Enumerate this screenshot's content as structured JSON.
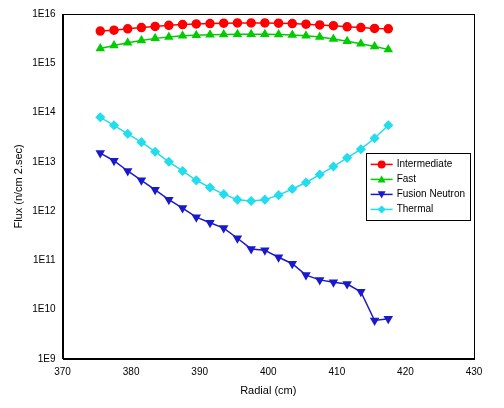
{
  "chart_data": {
    "type": "line",
    "x_label": "Radial (cm)",
    "y_label": "Flux (n/cm 2.sec)",
    "log": "y",
    "grid": false,
    "legend": "right",
    "x": [
      375.5,
      377.5,
      379.5,
      381.5,
      383.5,
      385.5,
      387.5,
      389.5,
      391.5,
      393.5,
      395.5,
      397.5,
      399.5,
      401.5,
      403.5,
      405.5,
      407.5,
      409.5,
      411.5,
      413.5,
      415.5,
      417.5
    ],
    "xlim": [
      370,
      430
    ],
    "xticks": [
      370,
      380,
      390,
      400,
      410,
      420,
      430
    ],
    "ylim": [
      1000000000.0,
      1e+16
    ],
    "yticks": [
      {
        "value": 1000000000.0,
        "label": "1E9"
      },
      {
        "value": 10000000000.0,
        "label": "1E10"
      },
      {
        "value": 100000000000.0,
        "label": "1E11"
      },
      {
        "value": 1000000000000.0,
        "label": "1E12"
      },
      {
        "value": 10000000000000.0,
        "label": "1E13"
      },
      {
        "value": 100000000000000.0,
        "label": "1E14"
      },
      {
        "value": 1000000000000000.0,
        "label": "1E15"
      },
      {
        "value": 1e+16,
        "label": "1E16"
      }
    ],
    "series": [
      {
        "name": "Intermediate",
        "color": "#ff0000",
        "marker": "circle",
        "values": [
          4500000000000000.0,
          4700000000000000.0,
          5000000000000000.0,
          5300000000000000.0,
          5600000000000000.0,
          5900000000000000.0,
          6100000000000000.0,
          6300000000000000.0,
          6400000000000000.0,
          6500000000000000.0,
          6600000000000000.0,
          6600000000000000.0,
          6600000000000000.0,
          6500000000000000.0,
          6400000000000000.0,
          6200000000000000.0,
          6000000000000000.0,
          5800000000000000.0,
          5500000000000000.0,
          5300000000000000.0,
          5100000000000000.0,
          5000000000000000.0
        ]
      },
      {
        "name": "Fast",
        "color": "#00cc00",
        "marker": "triangle-up",
        "values": [
          2000000000000000.0,
          2300000000000000.0,
          2600000000000000.0,
          2900000000000000.0,
          3200000000000000.0,
          3400000000000000.0,
          3600000000000000.0,
          3700000000000000.0,
          3800000000000000.0,
          3850000000000000.0,
          3900000000000000.0,
          3900000000000000.0,
          3900000000000000.0,
          3850000000000000.0,
          3750000000000000.0,
          3600000000000000.0,
          3400000000000000.0,
          3100000000000000.0,
          2800000000000000.0,
          2500000000000000.0,
          2200000000000000.0,
          1900000000000000.0
        ]
      },
      {
        "name": "Fusion Neutron",
        "color": "#1a1acc",
        "marker": "triangle-down",
        "values": [
          15000000000000.0,
          10500000000000.0,
          6500000000000.0,
          4200000000000.0,
          2700000000000.0,
          1700000000000.0,
          1150000000000.0,
          750000000000.0,
          580000000000.0,
          450000000000.0,
          280000000000.0,
          170000000000.0,
          160000000000.0,
          115000000000.0,
          85000000000.0,
          50000000000.0,
          40000000000.0,
          36000000000.0,
          33000000000.0,
          23000000000.0,
          6000000000.0,
          6500000000.0
        ]
      },
      {
        "name": "Thermal",
        "color": "#22ddee",
        "marker": "diamond",
        "values": [
          80000000000000.0,
          55000000000000.0,
          37000000000000.0,
          25000000000000.0,
          16000000000000.0,
          10000000000000.0,
          6500000000000.0,
          4200000000000.0,
          3000000000000.0,
          2200000000000.0,
          1700000000000.0,
          1600000000000.0,
          1700000000000.0,
          2100000000000.0,
          2800000000000.0,
          3800000000000.0,
          5500000000000.0,
          8000000000000.0,
          12000000000000.0,
          18000000000000.0,
          30000000000000.0,
          55000000000000.0
        ]
      }
    ]
  }
}
